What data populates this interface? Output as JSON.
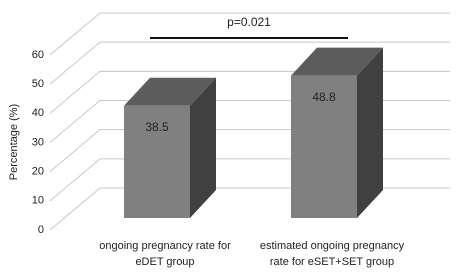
{
  "chart_data": {
    "type": "bar3d",
    "y_label": "Percentage (%)",
    "categories": [
      [
        "ongoing pregnancy rate for",
        "eDET group"
      ],
      [
        "estimated ongoing pregnancy",
        "rate for eSET+SET group"
      ]
    ],
    "values": [
      38.5,
      48.8
    ],
    "color": "#808080",
    "ylim": [
      0,
      60
    ],
    "yticks": [
      0,
      10,
      20,
      30,
      40,
      50,
      60
    ],
    "grid": true,
    "annotations": [
      {
        "text": "p=0.021"
      }
    ]
  }
}
